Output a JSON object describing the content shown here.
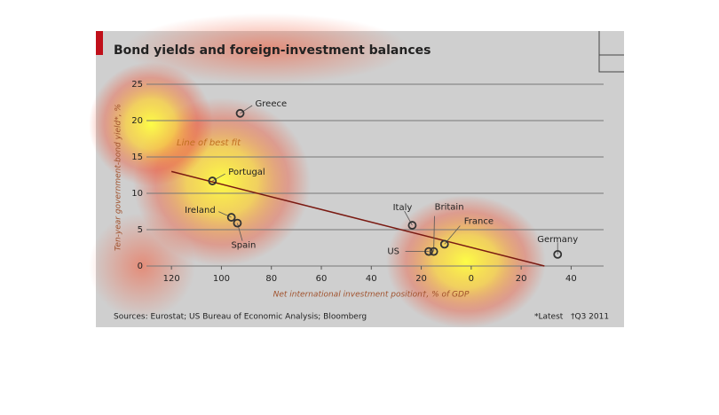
{
  "chart_data": {
    "type": "scatter",
    "title": "Bond yields and foreign-investment balances",
    "y_label": "Ten-year government-bond yield*, %",
    "x_label": "Net international investment position†, % of GDP",
    "source": "Sources: Eurostat; US Bureau of Economic Analysis; Bloomberg",
    "notes": [
      "*Latest",
      "†Q3 2011"
    ],
    "fit_label": "Line of best fit",
    "labels": [
      "Greece",
      "Portugal",
      "Ireland",
      "Spain",
      "Italy",
      "US",
      "Britain",
      "France",
      "Germany"
    ],
    "x": [
      -92.5,
      -103.6,
      -96,
      -93.6,
      -23.6,
      -17,
      -15,
      -10.7,
      34.6
    ],
    "values": [
      21.0,
      11.7,
      6.7,
      5.9,
      5.6,
      2.0,
      2.0,
      3.0,
      1.6
    ],
    "point_color": "#333333",
    "fit_line": {
      "color": "#7a1a12",
      "x": [
        -120,
        29.3
      ],
      "values": [
        13.0,
        0
      ]
    },
    "xlim": [
      -130,
      53
    ],
    "ylim": [
      0,
      25
    ],
    "xticks": [
      {
        "value": -120,
        "label": "120"
      },
      {
        "value": -100,
        "label": "100"
      },
      {
        "value": -80,
        "label": "80"
      },
      {
        "value": -60,
        "label": "60"
      },
      {
        "value": -40,
        "label": "40"
      },
      {
        "value": -20,
        "label": "20"
      },
      0,
      20,
      40
    ],
    "yticks": [
      0,
      5,
      10,
      15,
      20,
      25
    ],
    "grid": true
  }
}
